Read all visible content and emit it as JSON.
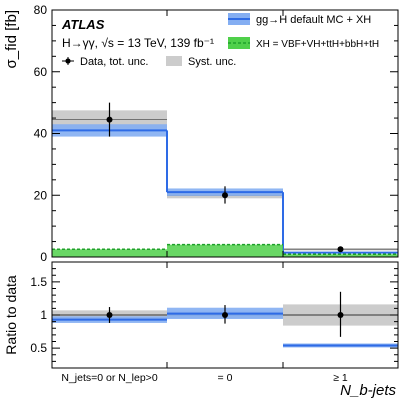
{
  "colors": {
    "ggh_line": "#2e6be6",
    "ggh_band": "#84aef2",
    "xh_line": "#1fa12a",
    "xh_fill": "#4fd04a",
    "syst": "#cccccc",
    "frame": "#000000"
  },
  "chart_data": [
    {
      "type": "bar",
      "panel": "main",
      "ylabel": "σ_fid [fb]",
      "ylim": [
        0,
        80
      ],
      "yticks": [
        "0",
        "20",
        "40",
        "60",
        "80"
      ],
      "categories": [
        "N_jets=0 or N_lep>0",
        "= 0",
        "≥ 1"
      ],
      "annotations": {
        "experiment": "ATLAS",
        "process": "H→γγ, √s = 13 TeV, 139 fb⁻¹"
      },
      "legend": {
        "placement": "top",
        "entries": [
          {
            "label": "Data, tot. unc.",
            "kind": "data"
          },
          {
            "label": "Syst. unc.",
            "kind": "syst"
          },
          {
            "label": "gg→H default MC + XH",
            "kind": "ggh"
          },
          {
            "label": "XH = VBF+VH+ttH+bbH+tH",
            "kind": "xh"
          }
        ]
      },
      "data": {
        "values": [
          44.5,
          20.0,
          2.5
        ],
        "tot_lo": [
          39.0,
          17.3,
          1.7
        ],
        "tot_hi": [
          50.0,
          22.9,
          3.3
        ],
        "syst_lo": [
          41.5,
          19.0,
          2.1
        ],
        "syst_hi": [
          47.5,
          21.0,
          2.9
        ]
      },
      "ggh_plus_xh": {
        "values": [
          41.0,
          21.0,
          1.4
        ],
        "band_lo": [
          39.0,
          19.8,
          1.2
        ],
        "band_hi": [
          43.0,
          22.2,
          1.6
        ]
      },
      "xh": {
        "values": [
          2.5,
          4.0,
          0.9
        ]
      }
    },
    {
      "type": "bar",
      "panel": "ratio",
      "ylabel": "Ratio to data",
      "xlabel": "N_b-jets",
      "ylim": [
        0.2,
        1.8
      ],
      "yticks": [
        "0.5",
        "1",
        "1.5"
      ],
      "categories": [
        "N_jets=0 or N_lep>0",
        "= 0",
        "≥ 1"
      ],
      "data": {
        "values": [
          1.0,
          1.0,
          1.0
        ],
        "tot_lo": [
          0.88,
          0.87,
          0.67
        ],
        "tot_hi": [
          1.12,
          1.15,
          1.35
        ],
        "syst_lo": [
          0.93,
          0.95,
          0.84
        ],
        "syst_hi": [
          1.07,
          1.05,
          1.16
        ]
      },
      "prediction": {
        "values": [
          0.93,
          1.02,
          0.54
        ],
        "band_lo": [
          0.88,
          0.94,
          0.51
        ],
        "band_hi": [
          0.98,
          1.11,
          0.57
        ]
      }
    }
  ]
}
